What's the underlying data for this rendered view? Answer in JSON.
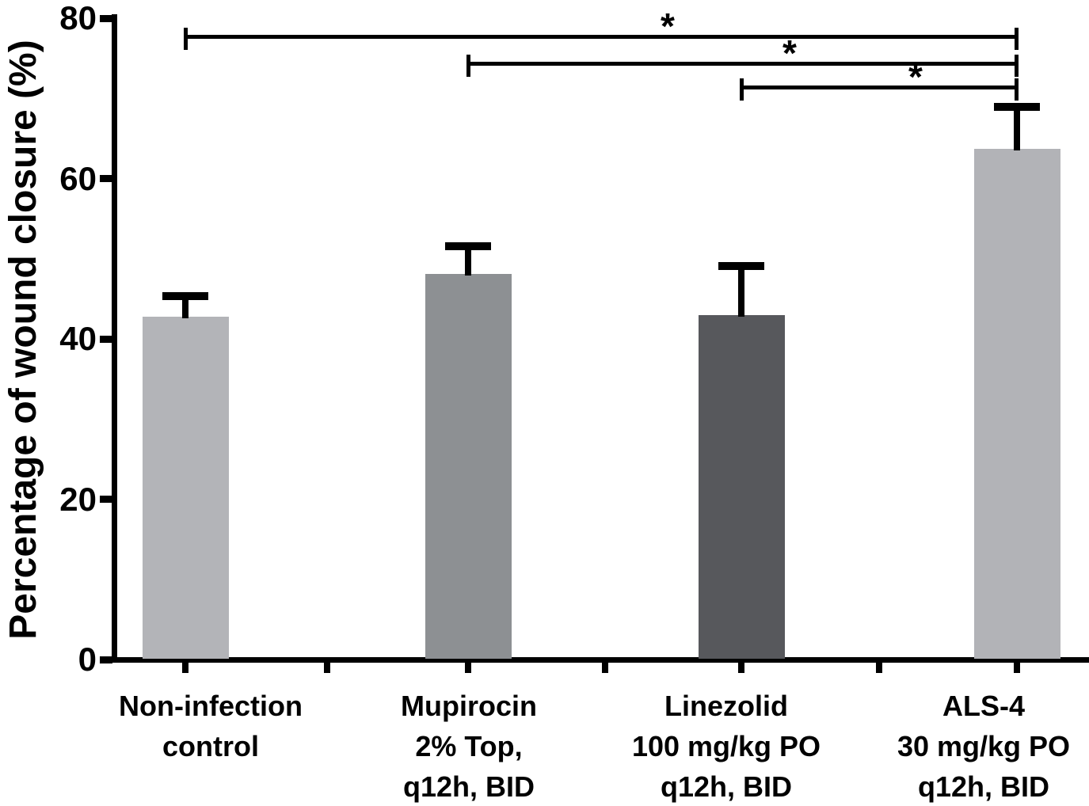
{
  "figure": {
    "background": "#ffffff",
    "axis_color": "#000000"
  },
  "chart_data": {
    "type": "bar",
    "title": "",
    "xlabel": "",
    "ylabel": "Percentage of wound closure (%)",
    "ylim": [
      0,
      80
    ],
    "yticks": [
      0,
      20,
      40,
      60,
      80
    ],
    "ytick_labels": [
      "0",
      "20",
      "40",
      "60",
      "80"
    ],
    "grid": false,
    "legend": "none",
    "categories": [
      "Non-infection control",
      "Mupirocin 2% Top, q12h, BID",
      "Linezolid 100 mg/kg PO q12h, BID",
      "ALS-4 30 mg/kg PO q12h, BID"
    ],
    "category_label_lines": [
      [
        "Non-infection",
        "control"
      ],
      [
        "Mupirocin",
        "2% Top,",
        "q12h, BID"
      ],
      [
        "Linezolid",
        "100 mg/kg PO",
        "q12h, BID"
      ],
      [
        "ALS-4",
        "30 mg/kg PO",
        "q12h, BID"
      ]
    ],
    "values": [
      42.8,
      48.1,
      43.0,
      63.7
    ],
    "error_bars": {
      "type": "sd-upper-only",
      "values": [
        2.5,
        3.5,
        6.1,
        5.2
      ]
    },
    "bar_colors": [
      "#b3b4b8",
      "#8d9093",
      "#57585c",
      "#b2b3b7"
    ],
    "significance_brackets": [
      {
        "from_category_index": 0,
        "to_category_index": 3,
        "label": "*"
      },
      {
        "from_category_index": 1,
        "to_category_index": 3,
        "label": "*"
      },
      {
        "from_category_index": 2,
        "to_category_index": 3,
        "label": "*"
      }
    ]
  }
}
